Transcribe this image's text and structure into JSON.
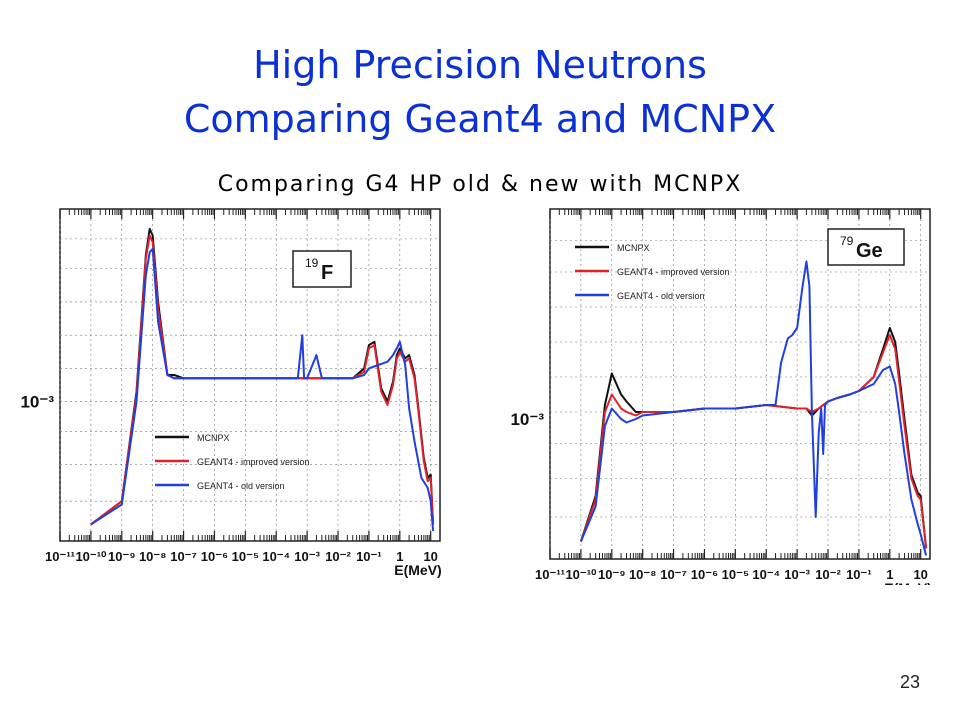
{
  "slide": {
    "title_line1": "High Precision Neutrons",
    "title_line2": "Comparing Geant4 and MCNPX",
    "subtitle": "Comparing G4 HP old & new with MCNPX",
    "page_number": "23"
  },
  "colors": {
    "title": "#0b31d6",
    "subtitle": "#d3383c",
    "mcnpx": "#111111",
    "improved": "#e0222a",
    "old": "#1f3fe0"
  },
  "chart_data": [
    {
      "type": "line",
      "element_label": "19",
      "element_symbol": "F",
      "xscale": "log",
      "xlim": [
        1e-11,
        20
      ],
      "ylabel_tick": "10⁻³",
      "xlabel": "E(MeV)",
      "xticks": [
        "10⁻¹¹",
        "10⁻¹⁰",
        "10⁻⁹",
        "10⁻⁸",
        "10⁻⁷",
        "10⁻⁶",
        "10⁻⁵",
        "10⁻⁴",
        "10⁻³",
        "10⁻²",
        "10⁻¹",
        "1",
        "10"
      ],
      "grid": true,
      "legend_position": "bottom-center",
      "series": [
        {
          "name": "MCNPX",
          "x": [
            1e-10,
            1e-09,
            3e-09,
            6e-09,
            8e-09,
            1e-08,
            1.5e-08,
            3e-08,
            5e-08,
            1e-07,
            1e-06,
            1e-05,
            0.0001,
            0.001,
            0.01,
            0.03,
            0.07,
            0.1,
            0.15,
            0.25,
            0.4,
            0.6,
            0.8,
            1,
            1.5,
            2,
            3,
            4,
            6,
            8,
            10,
            12
          ],
          "y": [
            0.05,
            0.12,
            0.45,
            0.86,
            0.94,
            0.92,
            0.72,
            0.5,
            0.5,
            0.49,
            0.49,
            0.49,
            0.49,
            0.49,
            0.49,
            0.49,
            0.52,
            0.59,
            0.6,
            0.46,
            0.42,
            0.48,
            0.56,
            0.58,
            0.55,
            0.56,
            0.5,
            0.4,
            0.25,
            0.19,
            0.2,
            0.05
          ]
        },
        {
          "name": "GEANT4 - improved version",
          "x": [
            1e-10,
            1e-09,
            3e-09,
            6e-09,
            8e-09,
            1e-08,
            1.5e-08,
            3e-08,
            5e-08,
            1e-07,
            1e-06,
            1e-05,
            0.0001,
            0.001,
            0.01,
            0.03,
            0.07,
            0.1,
            0.15,
            0.25,
            0.4,
            0.6,
            0.8,
            1,
            1.5,
            2,
            3,
            4,
            6,
            8,
            10,
            12
          ],
          "y": [
            0.05,
            0.12,
            0.44,
            0.85,
            0.92,
            0.9,
            0.7,
            0.5,
            0.49,
            0.49,
            0.49,
            0.49,
            0.49,
            0.49,
            0.49,
            0.49,
            0.51,
            0.58,
            0.59,
            0.45,
            0.41,
            0.47,
            0.55,
            0.57,
            0.54,
            0.55,
            0.49,
            0.39,
            0.24,
            0.18,
            0.19,
            0.05
          ]
        },
        {
          "name": "GEANT4 - old version",
          "x": [
            1e-10,
            1e-09,
            3e-09,
            6e-09,
            8e-09,
            1e-08,
            1.5e-08,
            3e-08,
            5e-08,
            1e-07,
            1e-06,
            1e-05,
            0.0001,
            0.0005,
            0.0007,
            0.0008,
            0.001,
            0.002,
            0.003,
            0.004,
            0.01,
            0.03,
            0.07,
            0.1,
            0.2,
            0.4,
            0.6,
            0.8,
            1,
            1.5,
            2,
            3,
            5,
            8,
            10,
            12
          ],
          "y": [
            0.05,
            0.11,
            0.42,
            0.8,
            0.87,
            0.88,
            0.66,
            0.5,
            0.49,
            0.49,
            0.49,
            0.49,
            0.49,
            0.49,
            0.62,
            0.49,
            0.49,
            0.56,
            0.49,
            0.49,
            0.49,
            0.49,
            0.5,
            0.52,
            0.53,
            0.54,
            0.56,
            0.58,
            0.6,
            0.53,
            0.4,
            0.3,
            0.19,
            0.16,
            0.12,
            0.03
          ]
        }
      ]
    },
    {
      "type": "line",
      "element_label": "79",
      "element_symbol": "Ge",
      "xscale": "log",
      "xlim": [
        1e-11,
        20
      ],
      "ylabel_tick": "10⁻³",
      "xlabel": "E(MeV)",
      "xticks": [
        "10⁻¹¹",
        "10⁻¹⁰",
        "10⁻⁹",
        "10⁻⁸",
        "10⁻⁷",
        "10⁻⁶",
        "10⁻⁵",
        "10⁻⁴",
        "10⁻³",
        "10⁻²",
        "10⁻¹",
        "1",
        "10"
      ],
      "grid": true,
      "legend_position": "top-left",
      "series": [
        {
          "name": "MCNPX",
          "x": [
            1e-10,
            3e-10,
            6e-10,
            1e-09,
            2e-09,
            3e-09,
            6e-09,
            1e-08,
            1e-07,
            1e-06,
            1e-05,
            0.0001,
            0.001,
            0.002,
            0.003,
            0.005,
            0.007,
            0.01,
            0.02,
            0.05,
            0.1,
            0.3,
            0.6,
            1,
            1.5,
            2,
            3,
            5,
            8,
            10,
            15
          ],
          "y": [
            0.05,
            0.18,
            0.44,
            0.53,
            0.47,
            0.45,
            0.42,
            0.42,
            0.42,
            0.43,
            0.43,
            0.44,
            0.43,
            0.43,
            0.41,
            0.43,
            0.44,
            0.45,
            0.46,
            0.47,
            0.48,
            0.52,
            0.6,
            0.66,
            0.62,
            0.53,
            0.4,
            0.24,
            0.19,
            0.18,
            0.03
          ]
        },
        {
          "name": "GEANT4 - improved version",
          "x": [
            1e-10,
            3e-10,
            6e-10,
            1e-09,
            2e-09,
            3e-09,
            6e-09,
            1e-08,
            1e-07,
            1e-06,
            1e-05,
            0.0001,
            0.001,
            0.002,
            0.003,
            0.005,
            0.007,
            0.01,
            0.02,
            0.05,
            0.1,
            0.3,
            0.6,
            1,
            1.5,
            2,
            3,
            5,
            8,
            10,
            15
          ],
          "y": [
            0.05,
            0.17,
            0.42,
            0.47,
            0.43,
            0.42,
            0.41,
            0.42,
            0.42,
            0.43,
            0.43,
            0.44,
            0.43,
            0.43,
            0.42,
            0.43,
            0.44,
            0.45,
            0.46,
            0.47,
            0.48,
            0.52,
            0.59,
            0.64,
            0.6,
            0.51,
            0.38,
            0.23,
            0.18,
            0.17,
            0.03
          ]
        },
        {
          "name": "GEANT4 - old version",
          "x": [
            1e-10,
            3e-10,
            6e-10,
            1e-09,
            2e-09,
            3e-09,
            6e-09,
            1e-08,
            1e-07,
            1e-06,
            1e-05,
            0.0001,
            0.0002,
            0.0003,
            0.0005,
            0.0007,
            0.001,
            0.0015,
            0.002,
            0.0025,
            0.003,
            0.004,
            0.005,
            0.006,
            0.007,
            0.008,
            0.01,
            0.02,
            0.05,
            0.1,
            0.3,
            0.6,
            1,
            1.5,
            2,
            3,
            5,
            8,
            10,
            15
          ],
          "y": [
            0.05,
            0.15,
            0.38,
            0.43,
            0.4,
            0.39,
            0.4,
            0.41,
            0.42,
            0.43,
            0.43,
            0.44,
            0.44,
            0.56,
            0.63,
            0.64,
            0.66,
            0.78,
            0.85,
            0.78,
            0.42,
            0.12,
            0.36,
            0.43,
            0.3,
            0.44,
            0.45,
            0.46,
            0.47,
            0.48,
            0.5,
            0.54,
            0.55,
            0.5,
            0.42,
            0.3,
            0.17,
            0.1,
            0.07,
            0.01
          ]
        }
      ]
    }
  ]
}
